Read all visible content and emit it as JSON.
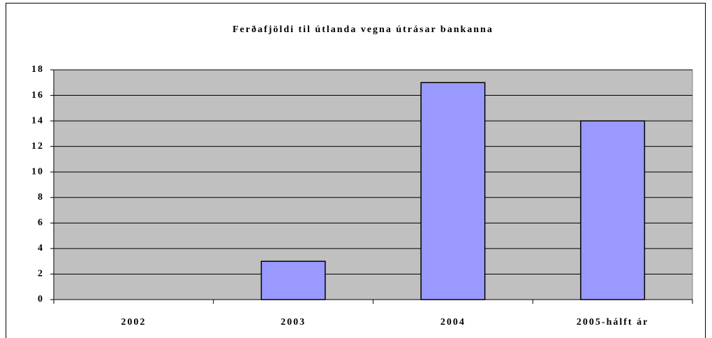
{
  "chart_data": {
    "type": "bar",
    "title": "Ferðafjöldi til útlanda vegna útrásar bankanna",
    "categories": [
      "2002",
      "2003",
      "2004",
      "2005-hálft ár"
    ],
    "values": [
      0,
      3,
      17,
      14
    ],
    "color": "#9999ff",
    "ylim": [
      0,
      18
    ],
    "yticks": [
      0,
      2,
      4,
      6,
      8,
      10,
      12,
      14,
      16,
      18
    ],
    "grid": true
  }
}
